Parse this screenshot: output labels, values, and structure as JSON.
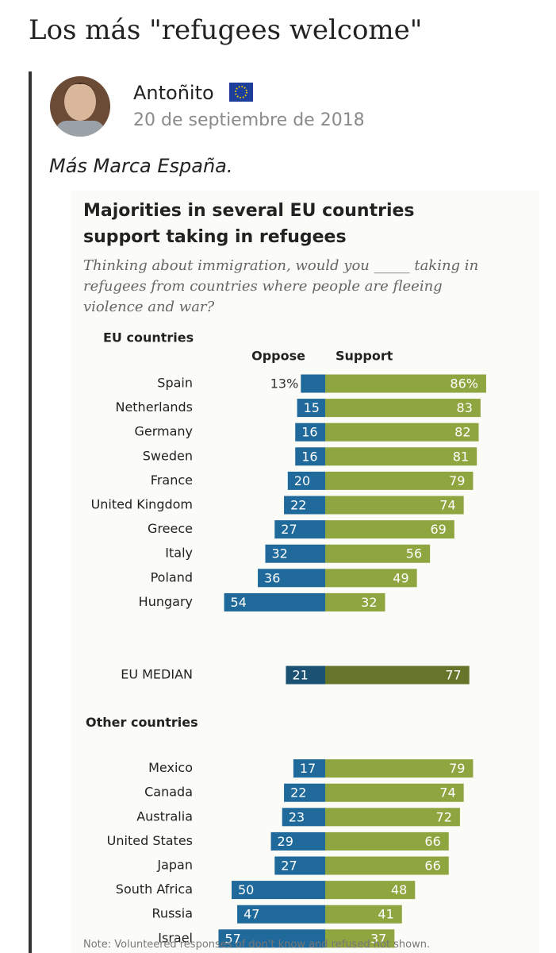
{
  "header": {
    "title": "Los más \"refugees welcome\""
  },
  "post": {
    "author": "Antoñito",
    "date": "20 de septiembre de 2018",
    "text": "Más Marca España."
  },
  "chart_data": {
    "type": "diverging_bar",
    "title": "Majorities in several EU countries support taking in refugees",
    "subtitle": "Thinking about immigration, would you _____ taking in refugees from countries where people are fleeing violence and war?",
    "series_names": [
      "Oppose",
      "Support"
    ],
    "colors": [
      "#1f6a9b",
      "#8fa540"
    ],
    "sections": [
      {
        "label": "EU countries",
        "categories": [
          "Spain",
          "Netherlands",
          "Germany",
          "Sweden",
          "France",
          "United Kingdom",
          "Greece",
          "Italy",
          "Poland",
          "Hungary"
        ],
        "oppose": [
          13,
          15,
          16,
          16,
          20,
          22,
          27,
          32,
          36,
          54
        ],
        "support": [
          86,
          83,
          82,
          81,
          79,
          74,
          69,
          56,
          49,
          32
        ],
        "oppose_labels": [
          "13%",
          "15",
          "16",
          "16",
          "20",
          "22",
          "27",
          "32",
          "36",
          "54"
        ],
        "support_labels": [
          "86%",
          "83",
          "82",
          "81",
          "79",
          "74",
          "69",
          "56",
          "49",
          "32"
        ]
      },
      {
        "categories": [
          "EU MEDIAN"
        ],
        "oppose": [
          21
        ],
        "support": [
          77
        ],
        "colors": [
          "#1b5273",
          "#65762b"
        ]
      },
      {
        "label": "Other countries",
        "categories": [
          "Mexico",
          "Canada",
          "Australia",
          "United States",
          "Japan",
          "South Africa",
          "Russia",
          "Israel"
        ],
        "oppose": [
          17,
          22,
          23,
          29,
          27,
          50,
          47,
          57
        ],
        "support": [
          79,
          74,
          72,
          66,
          66,
          48,
          41,
          37
        ]
      }
    ],
    "note": "Note: Volunteered responses of don't know and refused not shown."
  }
}
